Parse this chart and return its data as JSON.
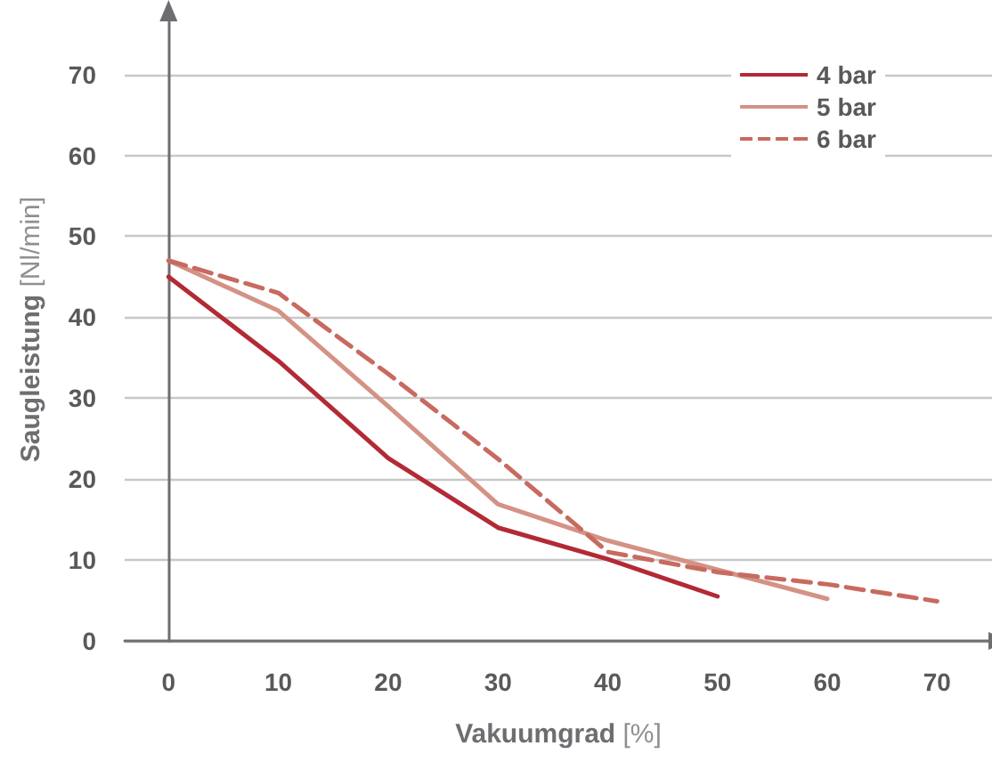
{
  "chart_data": {
    "type": "line",
    "xlabel": "Vakuumgrad [%]",
    "ylabel": "Saugleistung [Nl/min]",
    "xlim": [
      -4,
      75
    ],
    "xticks": [
      0,
      10,
      20,
      30,
      40,
      50,
      60,
      70
    ],
    "ylim": [
      0,
      77
    ],
    "yticks": [
      0,
      10,
      20,
      30,
      40,
      50,
      60,
      70
    ],
    "grid": "y",
    "legend": "top right",
    "marker": "none",
    "series": [
      {
        "name": "4 bar",
        "color": "#b22a35",
        "line_style": "solid",
        "x": [
          0,
          10,
          20,
          30,
          40,
          50
        ],
        "values": [
          45,
          34.6,
          22.6,
          14,
          10.1,
          5.5
        ]
      },
      {
        "name": "5 bar",
        "color": "#d49285",
        "line_style": "solid",
        "x": [
          0,
          10,
          20,
          30,
          40,
          50,
          60
        ],
        "values": [
          47,
          40.8,
          29,
          16.9,
          12.4,
          8.8,
          5.2
        ]
      },
      {
        "name": "6 bar",
        "color": "#c86a5f",
        "line_style": "dashed",
        "x": [
          0,
          10,
          20,
          30,
          40,
          50,
          60,
          70
        ],
        "values": [
          47,
          43,
          33,
          22.5,
          11,
          8.5,
          7,
          4.9
        ]
      }
    ]
  }
}
